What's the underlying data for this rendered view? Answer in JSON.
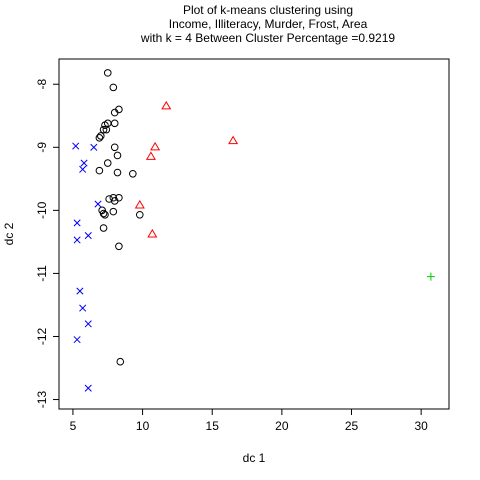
{
  "chart_data": {
    "type": "scatter",
    "title_lines": [
      "Plot of k-means clustering using",
      "Income, Illiteracy, Murder, Frost, Area",
      "with  k = 4 Between Cluster Percentage =0.9219"
    ],
    "xlabel": "dc 1",
    "ylabel": "dc 2",
    "xlim": [
      4.0,
      32.0
    ],
    "ylim": [
      -13.15,
      -7.6
    ],
    "x_ticks": [
      5,
      10,
      15,
      20,
      25,
      30
    ],
    "y_ticks": [
      -8,
      -9,
      -10,
      -11,
      -12,
      -13
    ],
    "grid": false,
    "legend": "none",
    "series": [
      {
        "marker": "circle",
        "color": "#000000",
        "points": [
          [
            7.5,
            -7.82
          ],
          [
            7.9,
            -8.05
          ],
          [
            8.3,
            -8.4
          ],
          [
            8.0,
            -8.45
          ],
          [
            7.5,
            -8.62
          ],
          [
            8.0,
            -8.62
          ],
          [
            7.3,
            -8.65
          ],
          [
            7.2,
            -8.72
          ],
          [
            7.4,
            -8.72
          ],
          [
            7.0,
            -8.82
          ],
          [
            6.9,
            -8.85
          ],
          [
            8.0,
            -9.0
          ],
          [
            8.2,
            -9.13
          ],
          [
            7.5,
            -9.25
          ],
          [
            6.9,
            -9.37
          ],
          [
            8.2,
            -9.4
          ],
          [
            9.3,
            -9.42
          ],
          [
            7.6,
            -9.82
          ],
          [
            7.9,
            -9.8
          ],
          [
            8.3,
            -9.8
          ],
          [
            8.0,
            -9.85
          ],
          [
            7.1,
            -10.0
          ],
          [
            7.9,
            -10.02
          ],
          [
            7.2,
            -10.05
          ],
          [
            7.3,
            -10.07
          ],
          [
            9.8,
            -10.07
          ],
          [
            7.2,
            -10.28
          ],
          [
            8.3,
            -10.57
          ],
          [
            8.4,
            -12.4
          ]
        ]
      },
      {
        "marker": "triangle",
        "color": "#ff0000",
        "points": [
          [
            11.7,
            -8.35
          ],
          [
            16.5,
            -8.9
          ],
          [
            10.9,
            -9.0
          ],
          [
            10.6,
            -9.15
          ],
          [
            9.8,
            -9.92
          ],
          [
            10.7,
            -10.38
          ]
        ]
      },
      {
        "marker": "x",
        "color": "#0000ff",
        "points": [
          [
            5.2,
            -8.98
          ],
          [
            6.5,
            -9.0
          ],
          [
            5.8,
            -9.25
          ],
          [
            5.7,
            -9.35
          ],
          [
            6.8,
            -9.9
          ],
          [
            5.3,
            -10.2
          ],
          [
            6.1,
            -10.4
          ],
          [
            5.3,
            -10.47
          ],
          [
            5.5,
            -11.28
          ],
          [
            5.7,
            -11.55
          ],
          [
            6.1,
            -11.8
          ],
          [
            5.3,
            -12.05
          ],
          [
            6.1,
            -12.82
          ]
        ]
      },
      {
        "marker": "plus",
        "color": "#00cc00",
        "points": [
          [
            30.7,
            -11.05
          ]
        ]
      }
    ]
  }
}
